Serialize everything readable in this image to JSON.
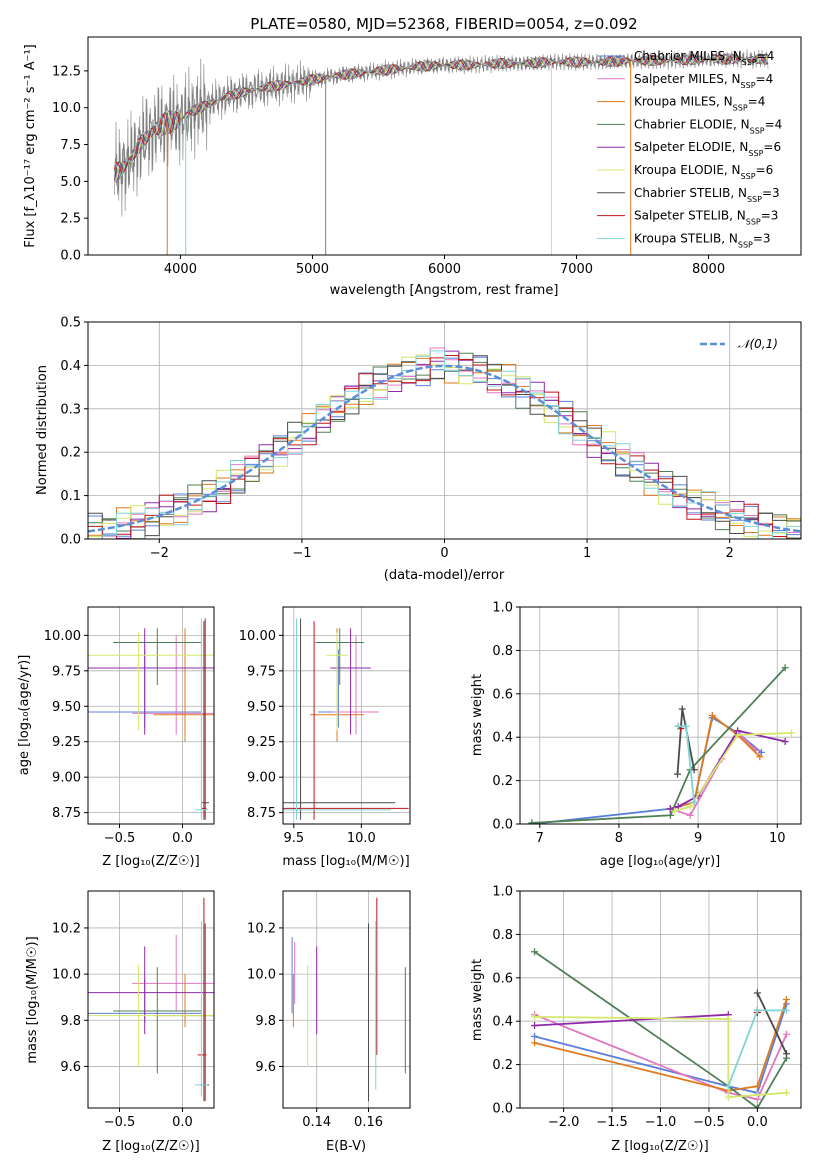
{
  "colors": {
    "Chabrier MILES": "#5b7fd8",
    "Salpeter MILES": "#e377c2",
    "Kroupa MILES": "#e07a1f",
    "Chabrier ELODIE": "#4f7f56",
    "Salpeter ELODIE": "#8e2aaa",
    "Kroupa ELODIE": "#d4e86a",
    "Chabrier STELIB": "#4a4a4a",
    "Salpeter STELIB": "#c01616",
    "Kroupa STELIB": "#7fd4d8",
    "data": "#808080",
    "normal": "#5b8fd8"
  },
  "chart_data": [
    {
      "id": "spectrum",
      "type": "line",
      "title": "PLATE=0580, MJD=52368, FIBERID=0054, z=0.092",
      "xlabel": "wavelength [Angstrom, rest frame]",
      "ylabel": "Flux [f_λ10⁻¹⁷ erg cm⁻² s⁻¹ A⁻¹]",
      "xlim": [
        3300,
        8700
      ],
      "ylim": [
        0,
        14.8
      ],
      "xticks": [
        4000,
        5000,
        6000,
        7000,
        8000
      ],
      "yticks": [
        0.0,
        2.5,
        5.0,
        7.5,
        10.0,
        12.5
      ],
      "grid": false,
      "legend_position": "right",
      "series": [
        {
          "name": "Chabrier MILES, N_SSP=4"
        },
        {
          "name": "Salpeter MILES, N_SSP=4"
        },
        {
          "name": "Kroupa MILES, N_SSP=4"
        },
        {
          "name": "Chabrier ELODIE, N_SSP=4"
        },
        {
          "name": "Salpeter ELODIE, N_SSP=6"
        },
        {
          "name": "Kroupa ELODIE, N_SSP=6"
        },
        {
          "name": "Chabrier STELIB, N_SSP=3"
        },
        {
          "name": "Salpeter STELIB, N_SSP=3"
        },
        {
          "name": "Kroupa STELIB, N_SSP=3"
        }
      ],
      "continuum": {
        "x": [
          3500,
          3600,
          3700,
          3800,
          3900,
          4000,
          4100,
          4200,
          4300,
          4400,
          4600,
          4800,
          5000,
          5200,
          5400,
          5600,
          5800,
          6000,
          6200,
          6400,
          6600,
          6800,
          7000,
          7200,
          7400,
          7700,
          8000,
          8300,
          8500
        ],
        "y": [
          5.5,
          6.2,
          7.6,
          8.5,
          9.0,
          9.2,
          9.8,
          10.2,
          10.6,
          10.9,
          11.3,
          11.6,
          11.9,
          12.2,
          12.4,
          12.6,
          12.8,
          12.9,
          12.9,
          13.0,
          13.0,
          13.1,
          13.1,
          13.1,
          13.2,
          13.2,
          13.3,
          13.3,
          13.3
        ]
      }
    },
    {
      "id": "residuals",
      "type": "line",
      "xlabel": "(data-model)/error",
      "ylabel": "Normed distribution",
      "xlim": [
        -2.5,
        2.5
      ],
      "ylim": [
        0,
        0.5
      ],
      "xticks": [
        -2,
        -1,
        0,
        1,
        2
      ],
      "yticks": [
        0.0,
        0.1,
        0.2,
        0.3,
        0.4,
        0.5
      ],
      "grid": true,
      "legend": "𝒩(0,1)",
      "legend_position": "top-right"
    },
    {
      "id": "age-vs-Z",
      "type": "scatter",
      "xlabel": "Z [log₁₀(Z/Z☉)]",
      "ylabel": "age  [log₁₀(age/yr)]",
      "xlim": [
        -0.75,
        0.25
      ],
      "ylim": [
        8.67,
        10.2
      ],
      "xticks": [
        -0.5,
        0.0
      ],
      "yticks": [
        8.75,
        9.0,
        9.25,
        9.5,
        9.75,
        10.0
      ],
      "grid": true,
      "points": [
        {
          "model": "Chabrier MILES",
          "x": -0.3,
          "y": 9.46,
          "x_err": [
            0.0,
            0.45
          ],
          "y_err": [
            9.35,
            9.9
          ]
        },
        {
          "model": "Salpeter MILES",
          "x": -0.05,
          "y": 9.45,
          "x_err": [
            0.0,
            0.35
          ],
          "y_err": [
            9.3,
            10.0
          ]
        },
        {
          "model": "Kroupa MILES",
          "x": 0.02,
          "y": 9.44,
          "x_err": [
            0.0,
            0.25
          ],
          "y_err": [
            9.25,
            10.05
          ]
        },
        {
          "model": "Chabrier ELODIE",
          "x": -0.2,
          "y": 9.95,
          "x_err": [
            0.0,
            0.35
          ],
          "y_err": [
            9.65,
            10.05
          ]
        },
        {
          "model": "Salpeter ELODIE",
          "x": -0.3,
          "y": 9.77,
          "x_err": [
            0.0,
            0.7
          ],
          "y_err": [
            9.3,
            10.05
          ]
        },
        {
          "model": "Kroupa ELODIE",
          "x": -0.35,
          "y": 9.86,
          "x_err": [
            0.0,
            0.7
          ],
          "y_err": [
            9.33,
            10.02
          ]
        },
        {
          "model": "Chabrier STELIB",
          "x": 0.18,
          "y": 8.82,
          "x_err": [
            0.03,
            0.03
          ],
          "y_err": [
            8.7,
            10.12
          ]
        },
        {
          "model": "Salpeter STELIB",
          "x": 0.17,
          "y": 8.78,
          "x_err": [
            0.02,
            0.02
          ],
          "y_err": [
            8.7,
            10.1
          ]
        },
        {
          "model": "Kroupa STELIB",
          "x": 0.15,
          "y": 8.77,
          "x_err": [
            0.05,
            0.05
          ],
          "y_err": [
            8.7,
            10.12
          ]
        }
      ]
    },
    {
      "id": "age-vs-mass",
      "type": "scatter",
      "xlabel": "mass [log₁₀(M/M☉)]",
      "xlim": [
        9.42,
        10.36
      ],
      "ylim": [
        8.67,
        10.2
      ],
      "xticks": [
        9.5,
        10.0
      ],
      "yticks": [
        8.75,
        9.0,
        9.25,
        9.5,
        9.75,
        10.0
      ],
      "grid": true,
      "points": [
        {
          "model": "Chabrier MILES",
          "x": 9.83,
          "y": 9.46,
          "x_err": [
            0.04,
            0.15
          ],
          "y_err": [
            9.35,
            9.9
          ]
        },
        {
          "model": "Salpeter MILES",
          "x": 9.96,
          "y": 9.46,
          "x_err": [
            0.12,
            0.17
          ],
          "y_err": [
            9.3,
            10.0
          ]
        },
        {
          "model": "Kroupa MILES",
          "x": 9.82,
          "y": 9.44,
          "x_err": [
            0.02,
            0.2
          ],
          "y_err": [
            9.25,
            10.05
          ]
        },
        {
          "model": "Chabrier ELODIE",
          "x": 9.84,
          "y": 9.95,
          "x_err": [
            0.02,
            0.18
          ],
          "y_err": [
            9.65,
            10.05
          ]
        },
        {
          "model": "Salpeter ELODIE",
          "x": 9.92,
          "y": 9.77,
          "x_err": [
            0.1,
            0.15
          ],
          "y_err": [
            9.3,
            10.05
          ]
        },
        {
          "model": "Kroupa ELODIE",
          "x": 9.82,
          "y": 9.86,
          "x_err": [
            0.05,
            0.08
          ],
          "y_err": [
            9.33,
            10.02
          ]
        },
        {
          "model": "Chabrier STELIB",
          "x": 9.55,
          "y": 8.82,
          "x_err": [
            0.08,
            0.7
          ],
          "y_err": [
            8.7,
            10.12
          ]
        },
        {
          "model": "Salpeter STELIB",
          "x": 9.65,
          "y": 8.78,
          "x_err": [
            0.1,
            0.7
          ],
          "y_err": [
            8.7,
            10.1
          ]
        },
        {
          "model": "Kroupa STELIB",
          "x": 9.52,
          "y": 8.77,
          "x_err": [
            0.04,
            0.7
          ],
          "y_err": [
            8.7,
            10.12
          ]
        }
      ]
    },
    {
      "id": "mass-weight-vs-age",
      "type": "line",
      "xlabel": "age  [log₁₀(age/yr)]",
      "ylabel": "mass weight",
      "xlim": [
        6.75,
        10.3
      ],
      "ylim": [
        0,
        1.0
      ],
      "xticks": [
        7,
        8,
        9,
        10
      ],
      "yticks": [
        0.0,
        0.2,
        0.4,
        0.6,
        0.8,
        1.0
      ],
      "grid": true,
      "series": [
        {
          "model": "Chabrier MILES",
          "x": [
            6.9,
            8.65,
            8.95,
            9.18,
            9.5,
            9.8
          ],
          "y": [
            0.0,
            0.07,
            0.1,
            0.49,
            0.42,
            0.33
          ]
        },
        {
          "model": "Salpeter MILES",
          "x": [
            8.65,
            8.9,
            9.3,
            9.5,
            9.73
          ],
          "y": [
            0.07,
            0.04,
            0.3,
            0.42,
            0.34
          ]
        },
        {
          "model": "Kroupa MILES",
          "x": [
            8.65,
            8.95,
            9.18,
            9.5,
            9.78
          ],
          "y": [
            0.07,
            0.1,
            0.5,
            0.41,
            0.31
          ]
        },
        {
          "model": "Chabrier ELODIE",
          "x": [
            6.9,
            8.65,
            8.9,
            10.1
          ],
          "y": [
            0.005,
            0.04,
            0.25,
            0.72
          ]
        },
        {
          "model": "Salpeter ELODIE",
          "x": [
            8.65,
            8.75,
            9.0,
            9.5,
            10.1
          ],
          "y": [
            0.07,
            0.08,
            0.13,
            0.43,
            0.38
          ]
        },
        {
          "model": "Kroupa ELODIE",
          "x": [
            8.7,
            8.9,
            9.5,
            10.18
          ],
          "y": [
            0.06,
            0.08,
            0.41,
            0.42
          ]
        },
        {
          "model": "Chabrier STELIB",
          "x": [
            8.74,
            8.8,
            8.95
          ],
          "y": [
            0.23,
            0.53,
            0.25
          ]
        },
        {
          "model": "Salpeter STELIB",
          "x": [
            8.75,
            8.78
          ],
          "y": [
            0.45,
            0.44
          ]
        },
        {
          "model": "Kroupa STELIB",
          "x": [
            8.75,
            8.85,
            8.95
          ],
          "y": [
            0.45,
            0.45,
            0.1
          ]
        }
      ]
    },
    {
      "id": "mass-vs-Z",
      "type": "scatter",
      "xlabel": "Z [log₁₀(Z/Z☉)]",
      "ylabel": "mass [log₁₀(M/M☉)]",
      "xlim": [
        -0.75,
        0.25
      ],
      "ylim": [
        9.42,
        10.36
      ],
      "xticks": [
        -0.5,
        0.0
      ],
      "yticks": [
        9.6,
        9.8,
        10.0,
        10.2
      ],
      "grid": true,
      "points": [
        {
          "model": "Chabrier MILES",
          "x": -0.3,
          "y": 9.83,
          "x_err": [
            0.0,
            0.45
          ],
          "y_err": [
            9.79,
            9.98
          ]
        },
        {
          "model": "Salpeter MILES",
          "x": -0.05,
          "y": 9.96,
          "x_err": [
            0.0,
            0.35
          ],
          "y_err": [
            9.84,
            10.17
          ]
        },
        {
          "model": "Kroupa MILES",
          "x": 0.02,
          "y": 9.82,
          "x_err": [
            0.0,
            0.25
          ],
          "y_err": [
            9.77,
            10.0
          ]
        },
        {
          "model": "Chabrier ELODIE",
          "x": -0.2,
          "y": 9.84,
          "x_err": [
            0.0,
            0.35
          ],
          "y_err": [
            9.57,
            10.03
          ]
        },
        {
          "model": "Salpeter ELODIE",
          "x": -0.3,
          "y": 9.92,
          "x_err": [
            0.0,
            0.7
          ],
          "y_err": [
            9.74,
            10.12
          ]
        },
        {
          "model": "Kroupa ELODIE",
          "x": -0.35,
          "y": 9.82,
          "x_err": [
            0.0,
            0.7
          ],
          "y_err": [
            9.6,
            10.04
          ]
        },
        {
          "model": "Chabrier STELIB",
          "x": 0.18,
          "y": 9.52,
          "x_err": [
            0.04,
            0.03
          ],
          "y_err": [
            9.45,
            10.22
          ]
        },
        {
          "model": "Salpeter STELIB",
          "x": 0.17,
          "y": 9.65,
          "x_err": [
            0.05,
            0.02
          ],
          "y_err": [
            9.45,
            10.33
          ]
        },
        {
          "model": "Kroupa STELIB",
          "x": 0.15,
          "y": 9.52,
          "x_err": [
            0.04,
            0.05
          ],
          "y_err": [
            9.47,
            10.23
          ]
        }
      ]
    },
    {
      "id": "mass-vs-ebv",
      "type": "scatter",
      "xlabel": "E(B-V)",
      "xlim": [
        0.127,
        0.176
      ],
      "ylim": [
        9.42,
        10.36
      ],
      "xticks": [
        0.14,
        0.16
      ],
      "yticks": [
        9.6,
        9.8,
        10.0,
        10.2
      ],
      "grid": true,
      "points": [
        {
          "model": "Chabrier MILES",
          "x": 0.1305,
          "y_err": [
            9.83,
            10.16
          ]
        },
        {
          "model": "Salpeter MILES",
          "x": 0.1315,
          "y_err": [
            9.87,
            10.14
          ]
        },
        {
          "model": "Kroupa MILES",
          "x": 0.131,
          "y_err": [
            9.77,
            10.0
          ]
        },
        {
          "model": "Chabrier ELODIE",
          "x": 0.1742,
          "y_err": [
            9.57,
            10.03
          ]
        },
        {
          "model": "Salpeter ELODIE",
          "x": 0.14,
          "y_err": [
            9.74,
            10.12
          ]
        },
        {
          "model": "Kroupa ELODIE",
          "x": 0.1365,
          "y_err": [
            9.6,
            10.04
          ]
        },
        {
          "model": "Chabrier STELIB",
          "x": 0.16,
          "y_err": [
            9.45,
            10.22
          ]
        },
        {
          "model": "Salpeter STELIB",
          "x": 0.1632,
          "y_err": [
            9.65,
            10.33
          ]
        },
        {
          "model": "Kroupa STELIB",
          "x": 0.1628,
          "y_err": [
            9.5,
            10.23
          ]
        }
      ]
    },
    {
      "id": "mass-weight-vs-Z",
      "type": "line",
      "xlabel": "Z [log₁₀(Z/Z☉)]",
      "ylabel": "mass weight",
      "xlim": [
        -2.45,
        0.45
      ],
      "ylim": [
        0,
        1.0
      ],
      "xticks": [
        -2.0,
        -1.5,
        -1.0,
        -0.5,
        0.0
      ],
      "yticks": [
        0.0,
        0.2,
        0.4,
        0.6,
        0.8,
        1.0
      ],
      "grid": true,
      "series": [
        {
          "model": "Chabrier MILES",
          "x": [
            -2.3,
            -0.3,
            0.0,
            0.3
          ],
          "y": [
            0.33,
            0.1,
            0.07,
            0.48
          ]
        },
        {
          "model": "Salpeter MILES",
          "x": [
            -2.3,
            -0.3,
            0.0,
            0.3
          ],
          "y": [
            0.43,
            0.07,
            0.04,
            0.34
          ]
        },
        {
          "model": "Kroupa MILES",
          "x": [
            -2.3,
            -0.3,
            0.0,
            0.3
          ],
          "y": [
            0.3,
            0.08,
            0.1,
            0.5
          ]
        },
        {
          "model": "Chabrier ELODIE",
          "x": [
            -2.3,
            -0.3,
            0.0,
            0.3
          ],
          "y": [
            0.72,
            0.1,
            0.0,
            0.23
          ]
        },
        {
          "model": "Salpeter ELODIE",
          "x": [
            -2.3,
            -0.3
          ],
          "y": [
            0.38,
            0.43
          ]
        },
        {
          "model": "Kroupa ELODIE",
          "x": [
            -2.3,
            -0.3,
            -0.3,
            0.0,
            0.3
          ],
          "y": [
            0.42,
            0.41,
            0.05,
            0.06,
            0.07
          ]
        },
        {
          "model": "Chabrier STELIB",
          "x": [
            0.0,
            0.3
          ],
          "y": [
            0.53,
            0.25
          ]
        },
        {
          "model": "Salpeter STELIB",
          "x": [
            0.0,
            0.0
          ],
          "y": [
            0.44,
            0.45
          ]
        },
        {
          "model": "Kroupa STELIB",
          "x": [
            -0.3,
            0.0,
            0.3
          ],
          "y": [
            0.1,
            0.45,
            0.45
          ]
        }
      ]
    }
  ]
}
